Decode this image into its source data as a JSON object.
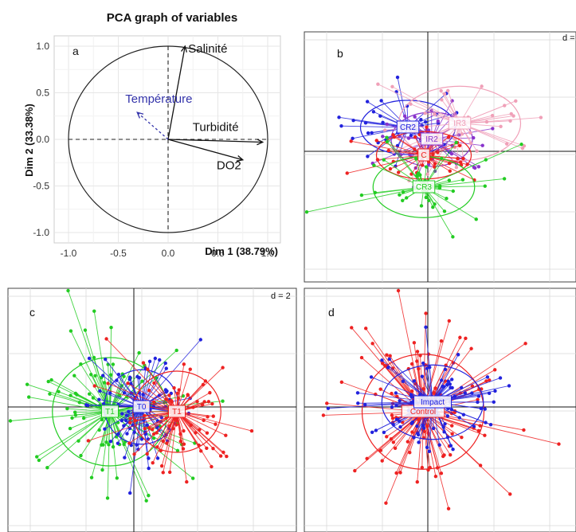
{
  "chart_data": [
    {
      "panel": "a",
      "type": "scatter",
      "title": "PCA graph of variables",
      "xlabel": "Dim 1 (38.79%)",
      "ylabel": "Dim 2 (33.38%)",
      "xlim": [
        -1.0,
        1.0
      ],
      "ylim": [
        -1.0,
        1.0
      ],
      "xticks": [
        "-1.0",
        "-0.5",
        "0.0",
        "0.5",
        "1.0"
      ],
      "yticks": [
        "-1.0",
        "-0.5",
        "0.0",
        "0.5",
        "1.0"
      ],
      "grid": true,
      "variables": [
        {
          "name": "Salinité",
          "x": 0.17,
          "y": 1.0,
          "color": "#111111",
          "dashed": false
        },
        {
          "name": "Température",
          "x": -0.31,
          "y": 0.29,
          "color": "#3333aa",
          "dashed": true
        },
        {
          "name": "Turbidité",
          "x": 0.95,
          "y": -0.03,
          "color": "#111111",
          "dashed": false
        },
        {
          "name": "DO2",
          "x": 0.75,
          "y": -0.22,
          "color": "#111111",
          "dashed": false
        }
      ]
    },
    {
      "panel": "b",
      "type": "scatter",
      "d_label": "d =",
      "groups": [
        {
          "name": "CR2",
          "color": "#2222dd",
          "cx": -0.25,
          "cy": 0.3
        },
        {
          "name": "IR2",
          "color": "#8833cc",
          "cx": 0.05,
          "cy": 0.15
        },
        {
          "name": "IR3",
          "color": "#f0a0b8",
          "cx": 0.4,
          "cy": 0.35
        },
        {
          "name": "C",
          "color": "#ee2222",
          "cx": -0.05,
          "cy": -0.05
        },
        {
          "name": "CR3",
          "color": "#22cc22",
          "cx": -0.05,
          "cy": -0.45
        }
      ]
    },
    {
      "panel": "c",
      "type": "scatter",
      "d_label": "d = 2",
      "groups": [
        {
          "name": "T1",
          "color": "#22cc22",
          "cx": -0.25,
          "cy": -0.05
        },
        {
          "name": "T0",
          "color": "#2222dd",
          "cx": 0.08,
          "cy": 0.0
        },
        {
          "name": "T1",
          "color": "#ee2222",
          "cx": 0.45,
          "cy": -0.05
        }
      ]
    },
    {
      "panel": "d",
      "type": "scatter",
      "groups": [
        {
          "name": "Control",
          "color": "#ee2222",
          "cx": -0.05,
          "cy": -0.05
        },
        {
          "name": "Impact",
          "color": "#2222dd",
          "cx": 0.05,
          "cy": 0.05
        }
      ]
    }
  ]
}
